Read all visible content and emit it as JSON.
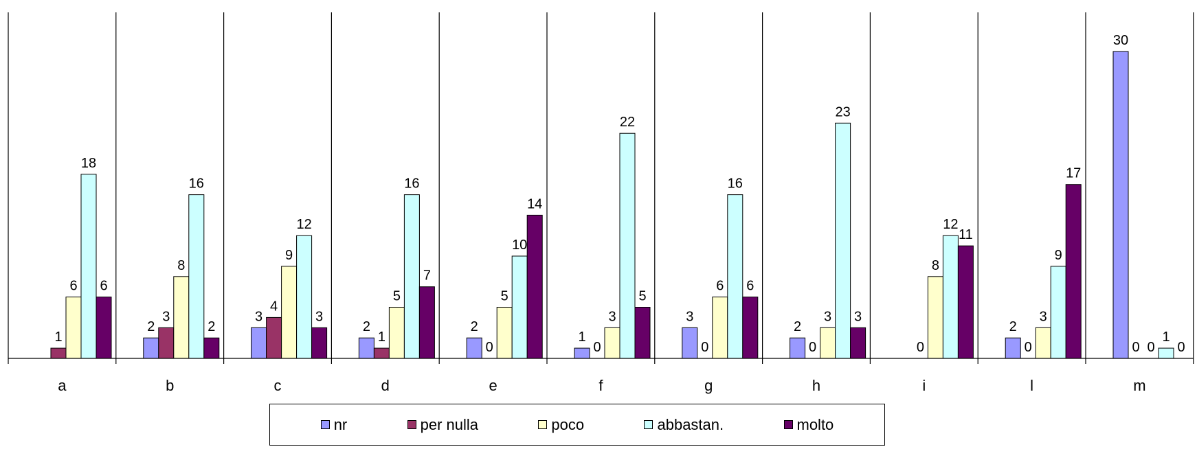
{
  "chart_data": {
    "type": "bar",
    "title": "",
    "xlabel": "",
    "ylabel": "",
    "ylim": [
      0,
      34
    ],
    "categories": [
      "a",
      "b",
      "c",
      "d",
      "e",
      "f",
      "g",
      "h",
      "i",
      "l",
      "m"
    ],
    "series": [
      {
        "name": "nr",
        "color": "#9999ff",
        "values": [
          null,
          2,
          3,
          2,
          2,
          1,
          3,
          2,
          null,
          2,
          30
        ]
      },
      {
        "name": "per nulla",
        "color": "#993366",
        "values": [
          1,
          3,
          4,
          1,
          0,
          0,
          0,
          0,
          0,
          0,
          0
        ]
      },
      {
        "name": "poco",
        "color": "#ffffcc",
        "values": [
          6,
          8,
          9,
          5,
          5,
          3,
          6,
          3,
          8,
          3,
          0
        ]
      },
      {
        "name": "abbastan.",
        "color": "#ccffff",
        "values": [
          18,
          16,
          12,
          16,
          10,
          22,
          16,
          23,
          12,
          9,
          1
        ]
      },
      {
        "name": "molto",
        "color": "#660066",
        "values": [
          6,
          2,
          3,
          7,
          14,
          5,
          6,
          3,
          11,
          17,
          0
        ]
      }
    ],
    "grid": false,
    "legend_position": "bottom",
    "data_labels": true
  }
}
